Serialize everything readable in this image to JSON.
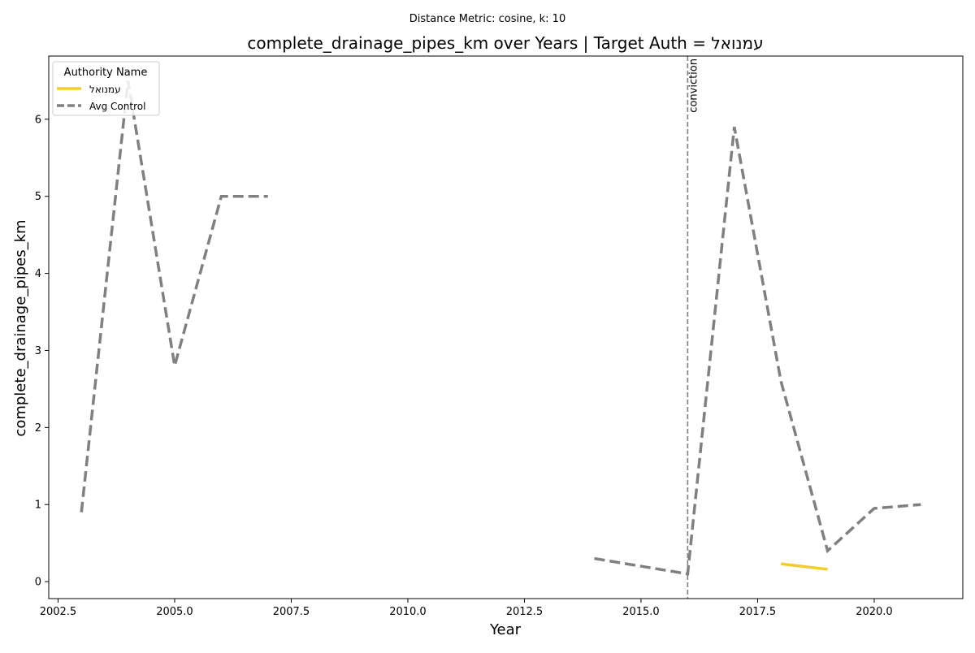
{
  "chart_data": {
    "type": "line",
    "suptitle": "Distance Metric: cosine, k: 10",
    "title": "complete_drainage_pipes_km over Years | Target Auth = עמנואל",
    "xlabel": "Year",
    "ylabel": "complete_drainage_pipes_km",
    "xlim": [
      2002.3,
      2021.9
    ],
    "ylim": [
      -0.22,
      6.82
    ],
    "x_ticks": [
      2002.5,
      2005.0,
      2007.5,
      2010.0,
      2012.5,
      2015.0,
      2017.5,
      2020.0
    ],
    "x_tick_labels": [
      "2002.5",
      "2005.0",
      "2007.5",
      "2010.0",
      "2012.5",
      "2015.0",
      "2017.5",
      "2020.0"
    ],
    "y_ticks": [
      0,
      1,
      2,
      3,
      4,
      5,
      6
    ],
    "y_tick_labels": [
      "0",
      "1",
      "2",
      "3",
      "4",
      "5",
      "6"
    ],
    "grid": false,
    "legend": {
      "title": "Authority Name",
      "placement": "top-left"
    },
    "series": [
      {
        "name": "עמנואל",
        "color": "#f2cd2c",
        "line_style": "solid",
        "segments": [
          [
            [
              2018,
              0.23
            ],
            [
              2019,
              0.16
            ]
          ]
        ]
      },
      {
        "name": "Avg Control",
        "color": "#808080",
        "line_style": "dashed",
        "segments": [
          [
            [
              2003,
              0.9
            ],
            [
              2004,
              6.5
            ],
            [
              2005,
              2.8
            ],
            [
              2006,
              5.0
            ],
            [
              2007,
              5.0
            ]
          ],
          [
            [
              2014,
              0.3
            ],
            [
              2016,
              0.1
            ],
            [
              2017,
              5.9
            ],
            [
              2018,
              2.6
            ],
            [
              2019,
              0.4
            ],
            [
              2020,
              0.95
            ],
            [
              2021,
              1.0
            ]
          ]
        ]
      }
    ],
    "annotations": [
      {
        "type": "vline",
        "x": 2016,
        "label": "conviction",
        "color": "#808080",
        "line_style": "dashed"
      }
    ]
  }
}
